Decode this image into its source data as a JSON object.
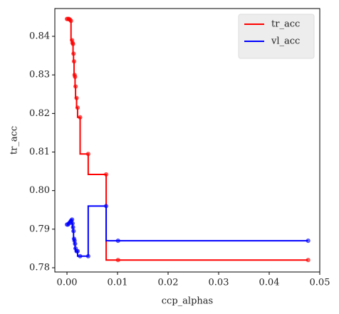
{
  "chart_data": {
    "type": "step",
    "xlabel": "ccp_alphas",
    "ylabel": "tr_acc",
    "x": [
      0,
      0.0002,
      0.0004,
      0.0006,
      0.0008,
      0.001,
      0.0011,
      0.0012,
      0.0013,
      0.0014,
      0.0015,
      0.0016,
      0.0017,
      0.0019,
      0.0021,
      0.0026,
      0.0042,
      0.00775,
      0.0101,
      0.0477
    ],
    "series": [
      {
        "name": "tr_acc",
        "color": "#ff0000",
        "values": [
          0.8445,
          0.8445,
          0.8445,
          0.8443,
          0.844,
          0.839,
          0.8383,
          0.838,
          0.8355,
          0.8335,
          0.83,
          0.8295,
          0.827,
          0.824,
          0.8215,
          0.819,
          0.8095,
          0.8042,
          0.782,
          0.782
        ]
      },
      {
        "name": "vl_acc",
        "color": "#0000ff",
        "values": [
          0.7912,
          0.7912,
          0.7915,
          0.7918,
          0.7922,
          0.7925,
          0.7915,
          0.7905,
          0.7895,
          0.7875,
          0.787,
          0.7862,
          0.785,
          0.7843,
          0.7843,
          0.783,
          0.783,
          0.796,
          0.787,
          0.787
        ]
      }
    ],
    "xlim": [
      -0.0024,
      0.05
    ],
    "ylim": [
      0.7789,
      0.8472
    ],
    "xticks": [
      {
        "value": 0,
        "label": "0.00"
      },
      0.01,
      0.02,
      0.03,
      0.04,
      0.05
    ],
    "yticks": [
      0.78,
      0.79,
      {
        "value": 0.8,
        "label": "0.80"
      },
      0.81,
      0.82,
      0.83,
      0.84
    ],
    "legend": "upper right"
  }
}
